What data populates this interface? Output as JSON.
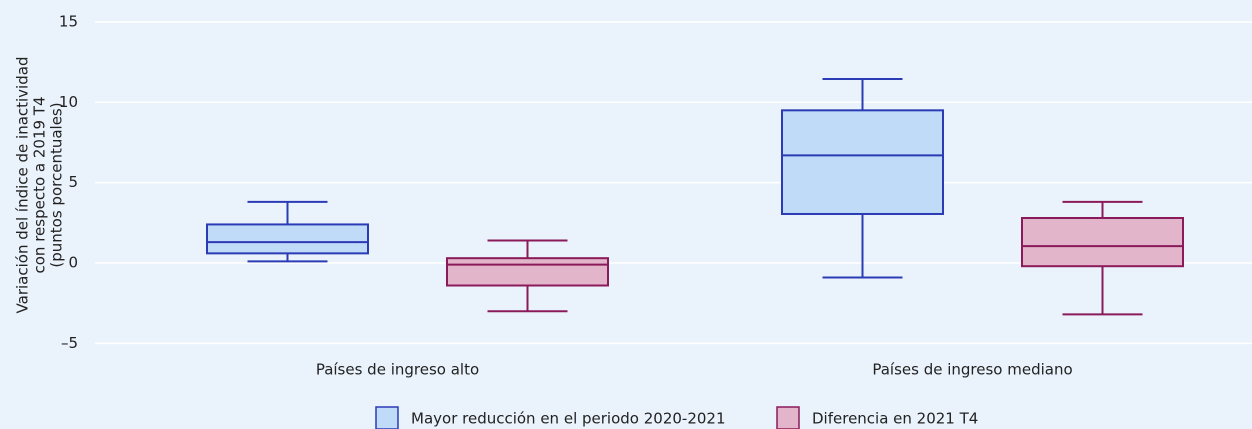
{
  "chart_data": {
    "type": "box",
    "ylabel": [
      "Variación del índice de inactividad",
      "con respecto a 2019 T4",
      "(puntos porcentuales)"
    ],
    "categories": [
      "Países de ingreso alto",
      "Países de ingreso mediano"
    ],
    "series": [
      {
        "name": "Mayor reducción en el periodo 2020-2021",
        "color": "#bfdbf7",
        "edge": "#2b3bb5",
        "min": [
          0.1,
          -0.9
        ],
        "q1": [
          0.6,
          3.05
        ],
        "median": [
          1.3,
          6.7
        ],
        "q3": [
          2.4,
          9.5
        ],
        "max": [
          3.8,
          11.45
        ]
      },
      {
        "name": "Diferencia en 2021 T4",
        "color": "#e2b5cb",
        "edge": "#8b1a5a",
        "min": [
          -3.0,
          -3.2
        ],
        "q1": [
          -1.4,
          -0.2
        ],
        "median": [
          -0.1,
          1.05
        ],
        "q3": [
          0.3,
          2.8
        ],
        "max": [
          1.4,
          3.8
        ]
      }
    ],
    "ylim": [
      -6,
      16
    ],
    "yticks": [
      {
        "value": -5,
        "label": "–5"
      },
      0,
      5,
      10,
      15
    ],
    "grid": true
  }
}
